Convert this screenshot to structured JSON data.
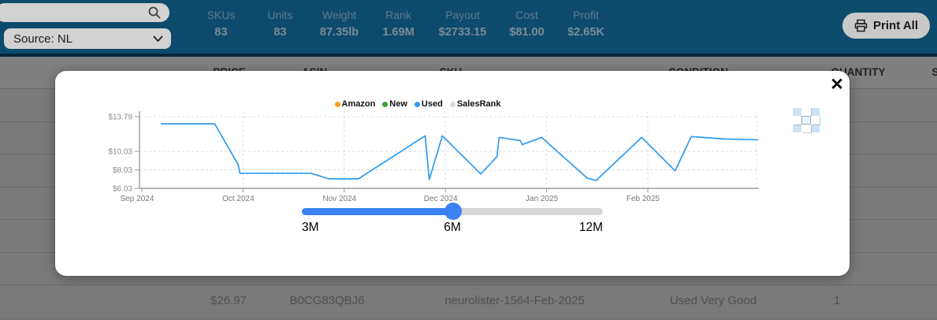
{
  "header": {
    "search": {
      "placeholder": ""
    },
    "source_select": {
      "value": "Source: NL"
    },
    "stats": [
      {
        "label": "SKUs",
        "value": "83"
      },
      {
        "label": "Units",
        "value": "83"
      },
      {
        "label": "Weight",
        "value": "87.35lb"
      },
      {
        "label": "Rank",
        "value": "1.69M"
      },
      {
        "label": "Payout",
        "value": "$2733.15"
      },
      {
        "label": "Cost",
        "value": "$81.00"
      },
      {
        "label": "Profit",
        "value": "$2.65K"
      }
    ],
    "print_button": {
      "label": "Print All"
    }
  },
  "table": {
    "columns": [
      "PRICE",
      "ASIN",
      "SKU",
      "CONDITION",
      "QUANTITY",
      "S"
    ],
    "visible_row": {
      "price": "$26.97",
      "asin": "B0CG83QBJ6",
      "sku": "neurolister-1564-Feb-2025",
      "condition": "Used Very Good",
      "quantity": "1"
    }
  },
  "modal": {
    "close_icon": "✕",
    "slider": {
      "range_labels": [
        "3M",
        "6M",
        "12M"
      ],
      "selected": "6M"
    }
  },
  "chart_data": {
    "type": "line",
    "title": "",
    "xlabel": "",
    "ylabel": "",
    "ylim": [
      6.03,
      14.2
    ],
    "grid": "dashed",
    "legend_position": "top-center",
    "legend": [
      {
        "name": "Amazon",
        "color": "#f6a21e"
      },
      {
        "name": "New",
        "color": "#3a9f3a"
      },
      {
        "name": "Used",
        "color": "#2e9bf0"
      },
      {
        "name": "SalesRank",
        "color": "#d9d9d9"
      }
    ],
    "y_ticks": [
      {
        "label": "$6.03",
        "value": 6.03
      },
      {
        "label": "$8.03",
        "value": 8.03
      },
      {
        "label": "$10.03",
        "value": 10.03
      },
      {
        "label": "$13.79",
        "value": 13.79
      }
    ],
    "x_ticks": [
      {
        "label": "Sep 2024",
        "m": 0
      },
      {
        "label": "Oct 2024",
        "m": 1
      },
      {
        "label": "Nov 2024",
        "m": 2
      },
      {
        "label": "Dec 2024",
        "m": 3
      },
      {
        "label": "Jan 2025",
        "m": 4
      },
      {
        "label": "Feb 2025",
        "m": 5
      }
    ],
    "x_unit": "months_after_2024-09-01",
    "series": [
      {
        "name": "Used",
        "color": "#2e9bf0",
        "unit": "USD",
        "points": [
          [
            0.19,
            13.01
          ],
          [
            0.72,
            13.01
          ],
          [
            0.95,
            8.62
          ],
          [
            0.97,
            7.67
          ],
          [
            1.67,
            7.67
          ],
          [
            1.85,
            7.06
          ],
          [
            2.14,
            7.06
          ],
          [
            2.8,
            11.72
          ],
          [
            2.84,
            6.98
          ],
          [
            2.97,
            11.72
          ],
          [
            3.35,
            7.58
          ],
          [
            3.51,
            9.48
          ],
          [
            3.53,
            11.55
          ],
          [
            3.74,
            11.2
          ],
          [
            3.76,
            10.77
          ],
          [
            3.95,
            11.55
          ],
          [
            4.4,
            7.15
          ],
          [
            4.49,
            6.89
          ],
          [
            4.94,
            11.55
          ],
          [
            5.27,
            7.93
          ],
          [
            5.43,
            11.63
          ],
          [
            5.76,
            11.37
          ],
          [
            6.09,
            11.29
          ]
        ]
      }
    ]
  }
}
